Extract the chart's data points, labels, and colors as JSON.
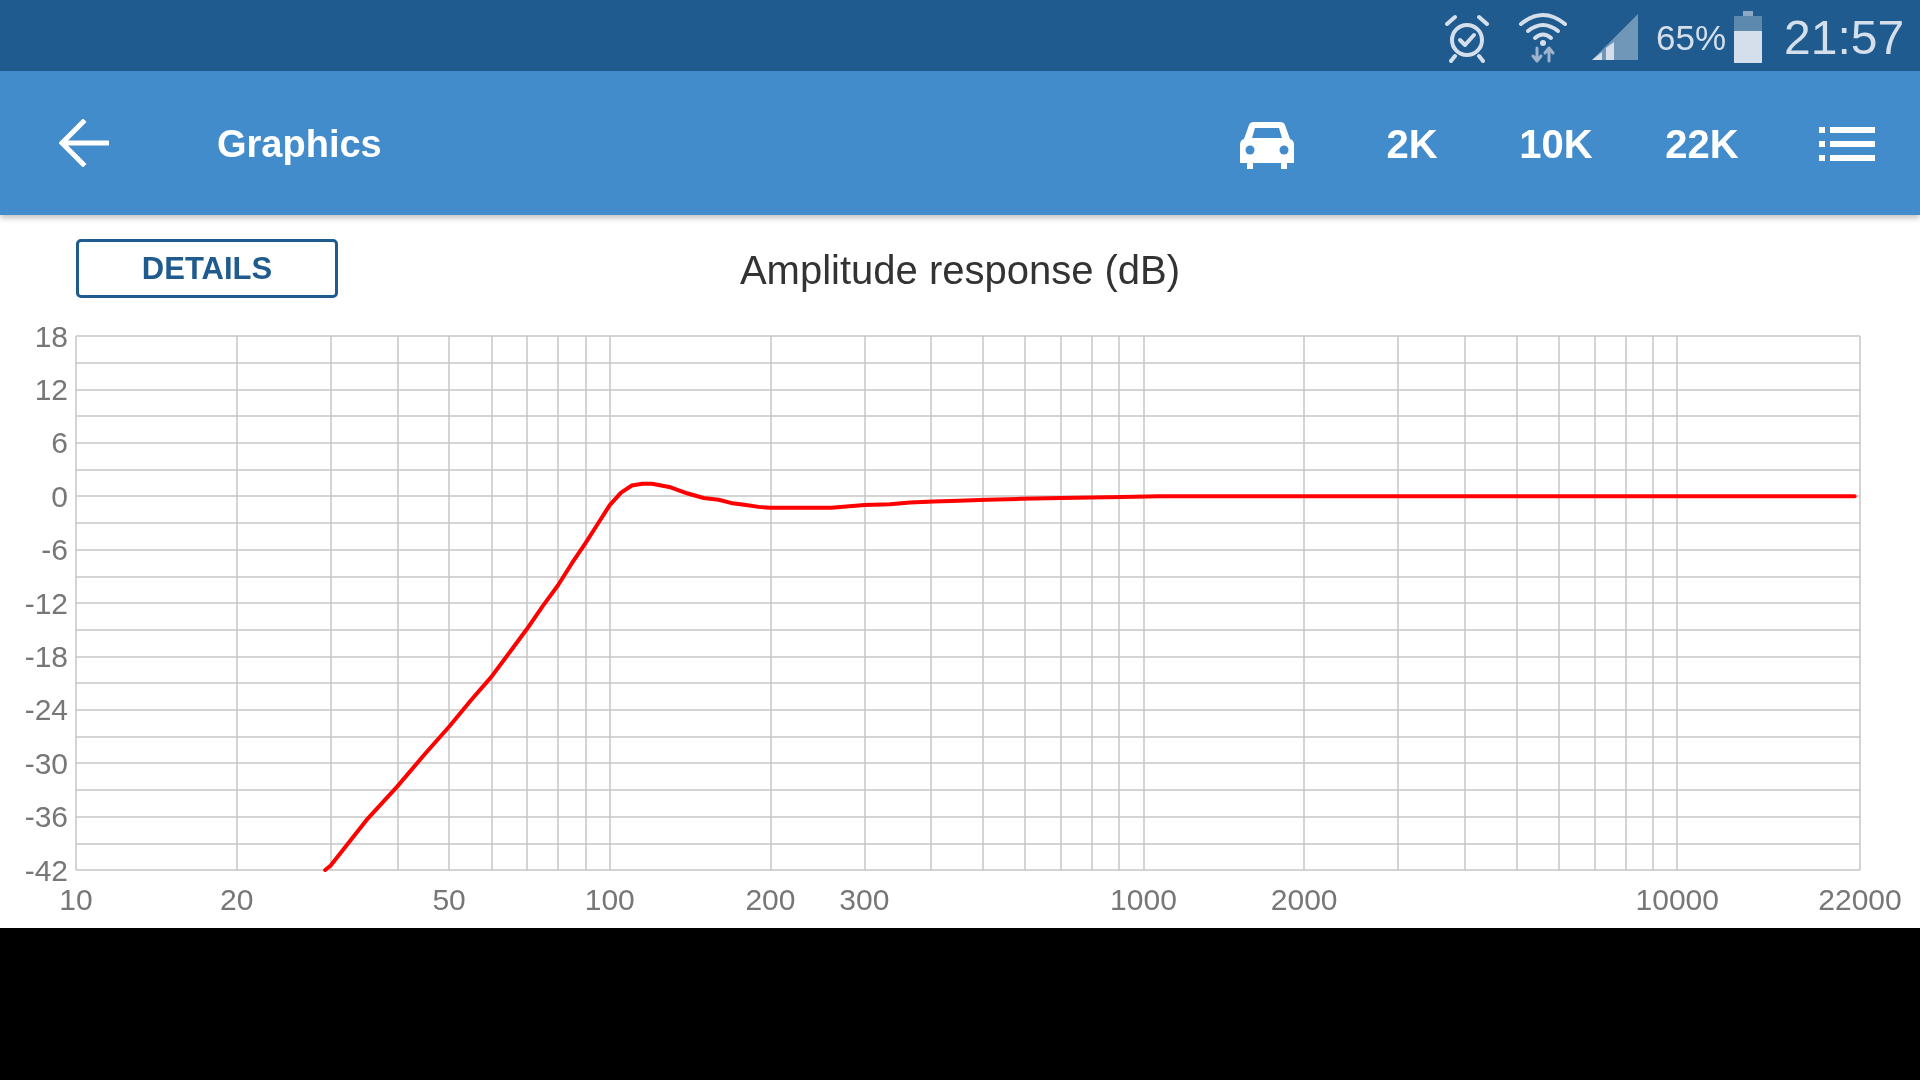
{
  "chart_data": {
    "type": "line",
    "title": "Amplitude response (dB)",
    "x": [
      29.3,
      30,
      35,
      40,
      45,
      50,
      55,
      60,
      65,
      70,
      75,
      80,
      85,
      90,
      95,
      100,
      105,
      110,
      115,
      120,
      130,
      140,
      150,
      160,
      170,
      180,
      190,
      200,
      260,
      300,
      335,
      365,
      405,
      450,
      510,
      590,
      700,
      910,
      1070,
      2500,
      5000,
      10000,
      21500
    ],
    "series": [
      {
        "color": "#ff0000",
        "values": [
          -42,
          -41.5,
          -36.4,
          -32.6,
          -29.0,
          -25.9,
          -22.9,
          -20.3,
          -17.5,
          -14.9,
          -12.3,
          -10.0,
          -7.5,
          -5.3,
          -3.1,
          -1.0,
          0.4,
          1.2,
          1.4,
          1.4,
          1.0,
          0.3,
          -0.2,
          -0.4,
          -0.8,
          -1.0,
          -1.2,
          -1.3,
          -1.3,
          -1.0,
          -0.9,
          -0.7,
          -0.6,
          -0.5,
          -0.4,
          -0.3,
          -0.2,
          -0.1,
          0,
          0,
          0,
          0,
          0
        ]
      }
    ],
    "log": "x",
    "xlim": [
      10,
      22000
    ],
    "xticks": [
      10,
      20,
      {
        "value": 30,
        "label": null
      },
      {
        "value": 40,
        "label": null
      },
      50,
      {
        "value": 60,
        "label": null
      },
      {
        "value": 70,
        "label": null
      },
      {
        "value": 80,
        "label": null
      },
      {
        "value": 90,
        "label": null
      },
      100,
      200,
      300,
      {
        "value": 400,
        "label": null
      },
      {
        "value": 500,
        "label": null
      },
      {
        "value": 600,
        "label": null
      },
      {
        "value": 700,
        "label": null
      },
      {
        "value": 800,
        "label": null
      },
      {
        "value": 900,
        "label": null
      },
      1000,
      2000,
      {
        "value": 3000,
        "label": null
      },
      {
        "value": 4000,
        "label": null
      },
      {
        "value": 5000,
        "label": null
      },
      {
        "value": 6000,
        "label": null
      },
      {
        "value": 7000,
        "label": null
      },
      {
        "value": 8000,
        "label": null
      },
      {
        "value": 9000,
        "label": null
      },
      10000,
      22000
    ],
    "ylim": [
      -42,
      18
    ],
    "yticks": [
      -42,
      {
        "value": -39,
        "label": null
      },
      -36,
      {
        "value": -33,
        "label": null
      },
      -30,
      {
        "value": -27,
        "label": null
      },
      -24,
      {
        "value": -21,
        "label": null
      },
      -18,
      {
        "value": -15,
        "label": null
      },
      -12,
      {
        "value": -9,
        "label": null
      },
      -6,
      {
        "value": -3,
        "label": null
      },
      0,
      {
        "value": 3,
        "label": null
      },
      6,
      {
        "value": 9,
        "label": null
      },
      12,
      {
        "value": 15,
        "label": null
      },
      18
    ],
    "grid": true,
    "marker": "none",
    "line_style": "solid",
    "annotations": [
      "DETAILS",
      "Graphics",
      "2K",
      "10K",
      "22K",
      "65%",
      "21:57"
    ]
  }
}
